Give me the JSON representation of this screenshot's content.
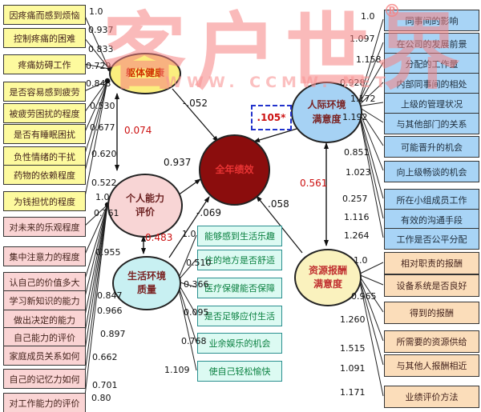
{
  "watermark": {
    "text": "客户世界",
    "registered": "®",
    "url_text": "WWW. CCMW. NET"
  },
  "ellipses": [
    {
      "name": "physical-health",
      "lines": [
        "躯体健康"
      ]
    },
    {
      "name": "personal-ability",
      "lines": [
        "个人能力",
        "评价"
      ]
    },
    {
      "name": "living-environment",
      "lines": [
        "生活环境",
        "质量"
      ]
    },
    {
      "name": "annual-performance",
      "lines": [
        "全年绩效"
      ]
    },
    {
      "name": "interpersonal-environment",
      "lines": [
        "人际环境",
        "满意度"
      ]
    },
    {
      "name": "resource-reward",
      "lines": [
        "资源报酬",
        "满意度"
      ]
    }
  ],
  "left_boxes": [
    "因疼痛而感到烦恼",
    "控制疼痛的困难",
    "疼痛妨碍工作",
    "是否容易感到疲劳",
    "被疲劳困扰的程度",
    "是否有睡眠困扰",
    "负性情绪的干扰",
    "药物的依赖程度",
    "为钱担忧的程度",
    "对未来的乐观程度",
    "集中注意力的程度",
    "认自己的价值多大",
    "学习新知识的能力",
    "做出决定的能力",
    "自己能力的评价",
    "家庭成员关系如何",
    "自己的记忆力如何",
    "对工作能力的评价"
  ],
  "left_loadings": [
    "1.0",
    "0.937",
    "0.833",
    "0.729",
    "0.843",
    "0.530",
    "0.677",
    "0.620",
    "0.522",
    "1.0",
    "0.761",
    "0.955",
    "0.847",
    "0.966",
    "0.897",
    "0.662",
    "0.701",
    "0.80"
  ],
  "green_boxes": [
    "能够感到生活乐趣",
    "住的地方是否舒适",
    "医疗保健能否保障",
    "是否足够应付生活",
    "业余娱乐的机会",
    "使自己轻松愉快"
  ],
  "green_loadings": [
    "1.0",
    "0.510",
    "0.366",
    "0.095",
    "0.768",
    "1.109"
  ],
  "right_boxes": [
    "同事间的影响",
    "在公司的发展前景",
    "分配的工作量",
    "内部同事间的相处",
    "上级的管理状况",
    "与其他部门的关系",
    "可能晋升的机会",
    "向上级畅谈的机会",
    "所在小组成员工作",
    "有效的沟通手段",
    "工作是否公平分配",
    "相对职责的报酬",
    "设备系统是否良好",
    "得到的报酬",
    "所需要的资源供给",
    "与其他人报酬相近",
    "业绩评价方法"
  ],
  "right_loadings": [
    "1.0",
    "1.097",
    "1.158",
    "0.928",
    "1.172",
    "1.192",
    "0.851",
    "1.023",
    "0.257",
    "1.116",
    "1.264",
    "1.0",
    "0.965",
    "1.260",
    "1.515",
    "1.091",
    "1.171"
  ],
  "path_labels": [
    {
      "label": "-.052"
    },
    {
      "label": "0.074",
      "emphasis": true
    },
    {
      "label": "0.937"
    },
    {
      "label": "-.069"
    },
    {
      "label": ".105*",
      "emphasis": true,
      "boxed": true
    },
    {
      "label": "0.561",
      "emphasis": true
    },
    {
      "label": ".058"
    },
    {
      "label": "0.483",
      "emphasis": true
    }
  ],
  "colors": {
    "accent_red": "#cc1111",
    "dashed_box_blue": "#2233cc",
    "performance_fill": "#8B0D0D"
  }
}
